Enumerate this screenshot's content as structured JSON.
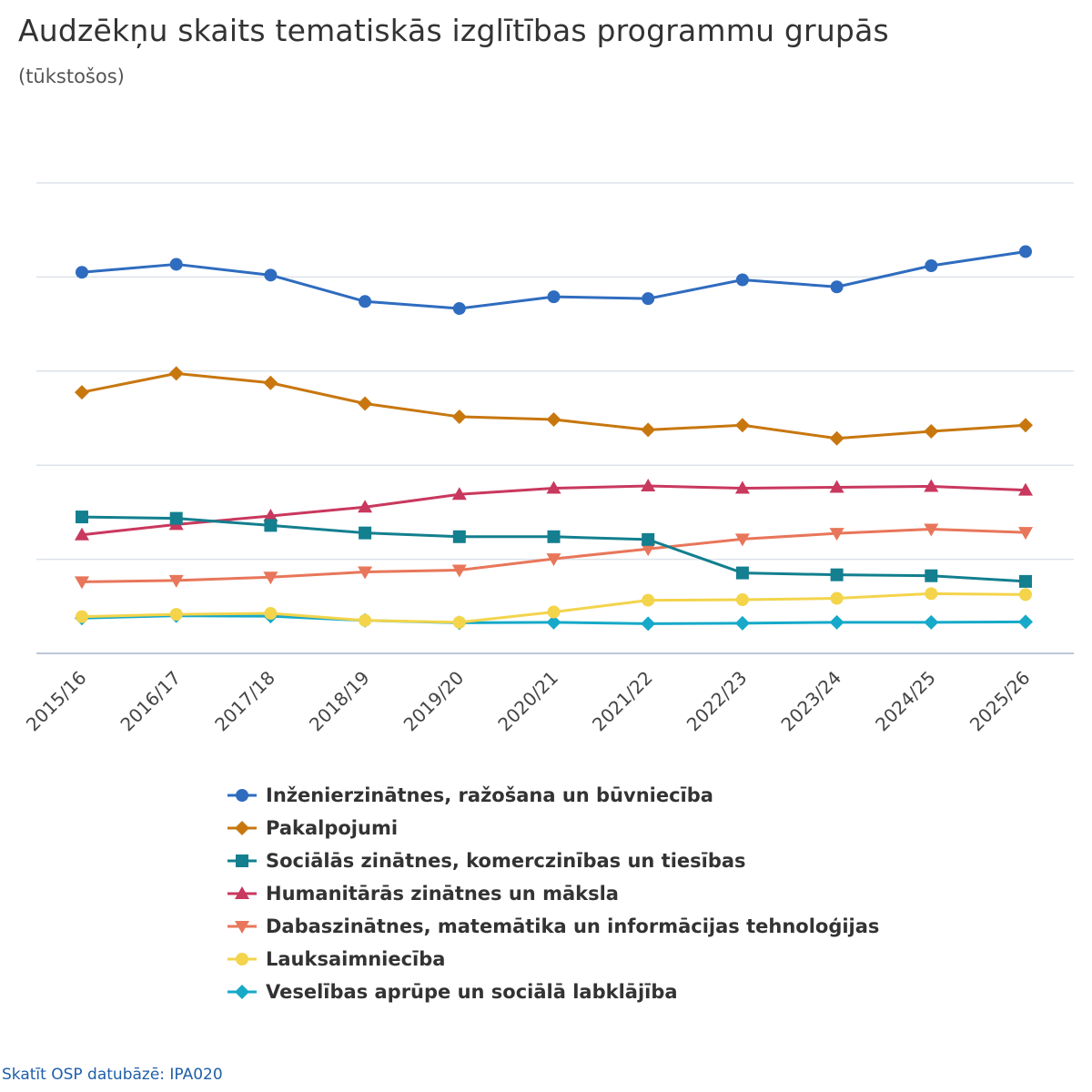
{
  "title": "Audzēkņu skaits tematiskās izglītības programmu grupās",
  "subtitle": "(tūkstošos)",
  "source_link": "Skatīt OSP datubāzē: IPA020",
  "chart_data": {
    "type": "line",
    "title": "Audzēkņu skaits tematiskās izglītības programmu grupās",
    "subtitle": "(tūkstošos)",
    "xlabel": "",
    "ylabel": "",
    "ylim": [
      0,
      10
    ],
    "grid": true,
    "legend_position": "bottom",
    "categories": [
      "2015/16",
      "2016/17",
      "2017/18",
      "2018/19",
      "2019/20",
      "2020/21",
      "2021/22",
      "2022/23",
      "2023/24",
      "2024/25",
      "2025/26"
    ],
    "series": [
      {
        "name": "Inženierzinātnes, ražošana un būvniecība",
        "color": "#2f6cbf",
        "marker": "circle",
        "values": [
          8.1,
          8.27,
          8.04,
          7.48,
          7.33,
          7.58,
          7.54,
          7.94,
          7.79,
          8.24,
          8.54
        ]
      },
      {
        "name": "Pakalpojumi",
        "color": "#c8770f",
        "marker": "diamond",
        "values": [
          5.55,
          5.95,
          5.75,
          5.31,
          5.03,
          4.97,
          4.75,
          4.85,
          4.57,
          4.72,
          4.85
        ]
      },
      {
        "name": "Sociālās zinātnes, komerczinības un tiesības",
        "color": "#137f8f",
        "marker": "square",
        "values": [
          2.9,
          2.87,
          2.72,
          2.56,
          2.48,
          2.48,
          2.42,
          1.71,
          1.67,
          1.65,
          1.53
        ]
      },
      {
        "name": "Humanitārās zinātnes un māksla",
        "color": "#c9385e",
        "marker": "triangle-up",
        "values": [
          2.52,
          2.74,
          2.92,
          3.11,
          3.38,
          3.51,
          3.56,
          3.51,
          3.53,
          3.55,
          3.47
        ]
      },
      {
        "name": "Dabaszinātnes, matemātika un informācijas tehnoloģijas",
        "color": "#e8765a",
        "marker": "triangle-down",
        "values": [
          1.52,
          1.55,
          1.62,
          1.73,
          1.77,
          2.01,
          2.22,
          2.43,
          2.55,
          2.64,
          2.57
        ]
      },
      {
        "name": "Lauksaimniecība",
        "color": "#f3d44b",
        "marker": "circle",
        "values": [
          0.78,
          0.83,
          0.85,
          0.7,
          0.66,
          0.88,
          1.13,
          1.14,
          1.17,
          1.27,
          1.25
        ]
      },
      {
        "name": "Veselības aprūpe un sociālā labklājība",
        "color": "#16a9c9",
        "marker": "diamond",
        "values": [
          0.75,
          0.8,
          0.79,
          0.7,
          0.65,
          0.66,
          0.63,
          0.64,
          0.66,
          0.66,
          0.67
        ]
      }
    ]
  }
}
